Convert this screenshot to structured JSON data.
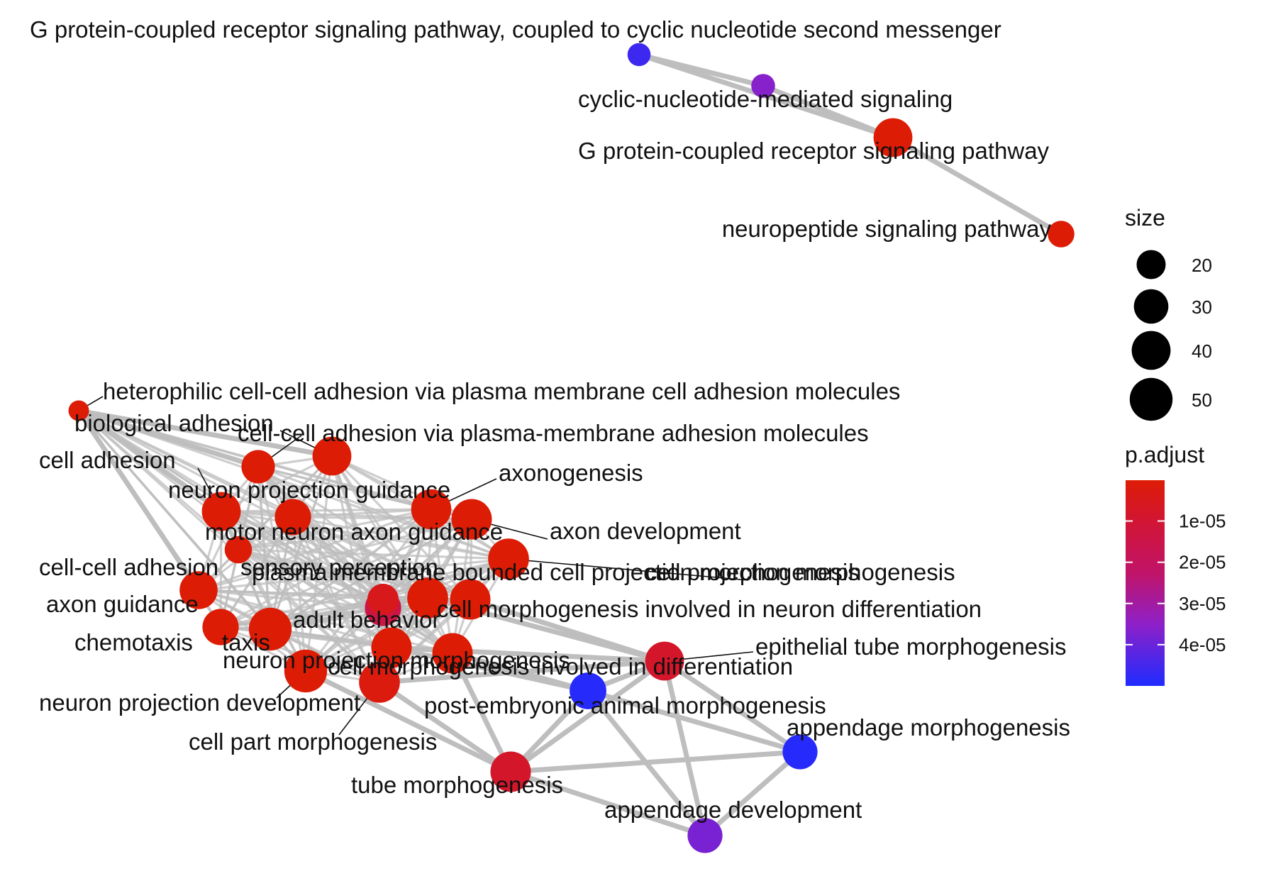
{
  "chart_data": {
    "type": "network",
    "nodes": [
      {
        "id": "gpcr_cyclic",
        "label": "G protein-coupled receptor signaling pathway, coupled to cyclic nucleotide second messenger",
        "size": 11,
        "p_adjust": 4.6e-05
      },
      {
        "id": "cyclic_nuc",
        "label": "cyclic-nucleotide-mediated signaling",
        "size": 12,
        "p_adjust": 3.6e-05
      },
      {
        "id": "gpcr",
        "label": "G protein-coupled receptor signaling pathway",
        "size": 40,
        "p_adjust": 1e-07
      },
      {
        "id": "neuropeptide",
        "label": "neuropeptide signaling pathway",
        "size": 16,
        "p_adjust": 1e-07
      },
      {
        "id": "heterophilic",
        "label": "heterophilic cell-cell adhesion via plasma membrane cell adhesion molecules",
        "size": 8,
        "p_adjust": 1e-07
      },
      {
        "id": "biological_adhesion",
        "label": "biological adhesion",
        "size": 40,
        "p_adjust": 1e-07
      },
      {
        "id": "ccadh_pm",
        "label": "cell-cell adhesion via plasma-membrane adhesion molecules",
        "size": 28,
        "p_adjust": 1e-07
      },
      {
        "id": "cell_adhesion",
        "label": "cell adhesion",
        "size": 40,
        "p_adjust": 1e-07
      },
      {
        "id": "axonogenesis",
        "label": "axonogenesis",
        "size": 43,
        "p_adjust": 1e-07
      },
      {
        "id": "npg",
        "label": "neuron projection guidance",
        "size": 34,
        "p_adjust": 1e-07
      },
      {
        "id": "axon_dev",
        "label": "axon development",
        "size": 44,
        "p_adjust": 1e-07
      },
      {
        "id": "motor_axon",
        "label": "motor neuron axon guidance",
        "size": 17,
        "p_adjust": 5e-07
      },
      {
        "id": "sensory",
        "label": "sensory perception",
        "size": 24,
        "p_adjust": 5e-06
      },
      {
        "id": "cpm",
        "label": "cell projection morphogenesis",
        "size": 45,
        "p_adjust": 1e-07
      },
      {
        "id": "pmbcpm",
        "label": "plasma membrane bounded cell projection morphogenesis",
        "size": 45,
        "p_adjust": 1e-07
      },
      {
        "id": "ccadh",
        "label": "cell-cell adhesion",
        "size": 38,
        "p_adjust": 1e-07
      },
      {
        "id": "cmind",
        "label": "cell morphogenesis involved in neuron differentiation",
        "size": 44,
        "p_adjust": 1e-07
      },
      {
        "id": "axon_guidance",
        "label": "axon guidance",
        "size": 34,
        "p_adjust": 1e-07
      },
      {
        "id": "adult_beh",
        "label": "adult behavior",
        "size": 34,
        "p_adjust": 1.4e-05
      },
      {
        "id": "chemotaxis",
        "label": "chemotaxis",
        "size": 44,
        "p_adjust": 1e-07
      },
      {
        "id": "taxis",
        "label": "taxis",
        "size": 50,
        "p_adjust": 1e-07
      },
      {
        "id": "etm",
        "label": "epithelial tube morphogenesis",
        "size": 40,
        "p_adjust": 8e-06
      },
      {
        "id": "npm",
        "label": "neuron projection morphogenesis",
        "size": 44,
        "p_adjust": 1e-07
      },
      {
        "id": "cmid",
        "label": "cell morphogenesis involved in differentiation",
        "size": 44,
        "p_adjust": 1e-07
      },
      {
        "id": "npd",
        "label": "neuron projection development",
        "size": 50,
        "p_adjust": 1e-07
      },
      {
        "id": "pe_animal",
        "label": "post-embryonic animal morphogenesis",
        "size": 35,
        "p_adjust": 4.9e-05
      },
      {
        "id": "cpm2",
        "label": "cell part morphogenesis",
        "size": 45,
        "p_adjust": 2e-06
      },
      {
        "id": "appendage_morph",
        "label": "appendage morphogenesis",
        "size": 31,
        "p_adjust": 4.9e-05
      },
      {
        "id": "tube_morph",
        "label": "tube morphogenesis",
        "size": 44,
        "p_adjust": 8e-06
      },
      {
        "id": "appendage_dev",
        "label": "appendage development",
        "size": 31,
        "p_adjust": 3.8e-05
      }
    ],
    "edges": [
      [
        "gpcr_cyclic",
        "cyclic_nuc"
      ],
      [
        "cyclic_nuc",
        "gpcr"
      ],
      [
        "gpcr_cyclic",
        "gpcr"
      ],
      [
        "gpcr",
        "neuropeptide"
      ],
      [
        "heterophilic",
        "biological_adhesion"
      ],
      [
        "heterophilic",
        "cell_adhesion"
      ],
      [
        "heterophilic",
        "ccadh_pm"
      ],
      [
        "heterophilic",
        "ccadh"
      ],
      [
        "etm",
        "tube_morph"
      ],
      [
        "etm",
        "appendage_morph"
      ],
      [
        "etm",
        "appendage_dev"
      ],
      [
        "etm",
        "pe_animal"
      ],
      [
        "etm",
        "cmind"
      ],
      [
        "etm",
        "pmbcpm"
      ],
      [
        "etm",
        "npm"
      ],
      [
        "etm",
        "cpm2"
      ],
      [
        "pe_animal",
        "tube_morph"
      ],
      [
        "pe_animal",
        "appendage_morph"
      ],
      [
        "pe_animal",
        "appendage_dev"
      ],
      [
        "pe_animal",
        "cmid"
      ],
      [
        "pe_animal",
        "npm"
      ],
      [
        "tube_morph",
        "appendage_morph"
      ],
      [
        "tube_morph",
        "appendage_dev"
      ],
      [
        "tube_morph",
        "cpm2"
      ],
      [
        "tube_morph",
        "npd"
      ],
      [
        "tube_morph",
        "cmid"
      ],
      [
        "appendage_morph",
        "appendage_dev"
      ]
    ],
    "legend": {
      "size": {
        "title": "size",
        "entries": [
          20,
          30,
          40,
          50
        ]
      },
      "color": {
        "title": "p.adjust",
        "ticks": [
          1e-05,
          2e-05,
          3e-05,
          4e-05
        ],
        "tick_labels": [
          "1e-05",
          "2e-05",
          "3e-05",
          "4e-05"
        ],
        "range": [
          1e-07,
          5e-05
        ],
        "low_color": "#DD1C05",
        "high_color": "#1F2BFF"
      }
    }
  }
}
